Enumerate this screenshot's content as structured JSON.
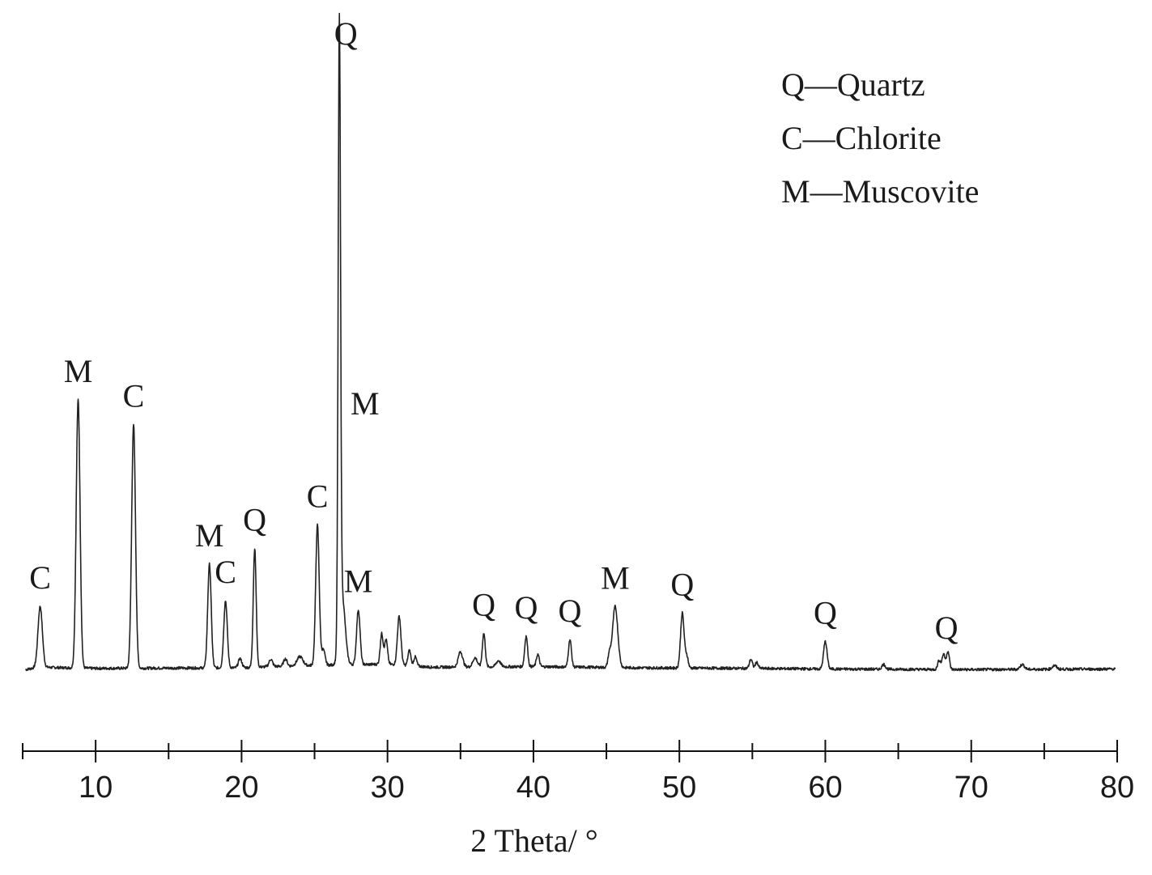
{
  "chart_data": {
    "type": "line",
    "xlabel": "2 Theta/ °",
    "ylabel": "",
    "title": "",
    "xlim": [
      5,
      80
    ],
    "ylim": [
      0,
      100
    ],
    "grid": false,
    "legend_position": "top-right",
    "x_ticks": [
      10,
      20,
      30,
      40,
      50,
      60,
      70,
      80
    ],
    "legend": [
      {
        "symbol": "Q",
        "name": "Quartz",
        "text": "Q—Quartz"
      },
      {
        "symbol": "C",
        "name": "Chlorite",
        "text": "C—Chlorite"
      },
      {
        "symbol": "M",
        "name": "Muscovite",
        "text": "M—Muscovite"
      }
    ],
    "annotations": [
      {
        "label": "C",
        "x": 6.2
      },
      {
        "label": "M",
        "x": 8.8
      },
      {
        "label": "C",
        "x": 12.6
      },
      {
        "label": "M",
        "x": 17.8
      },
      {
        "label": "C",
        "x": 18.9
      },
      {
        "label": "Q",
        "x": 20.9
      },
      {
        "label": "C",
        "x": 25.2
      },
      {
        "label": "Q",
        "x": 26.7
      },
      {
        "label": "M",
        "x": 26.9
      },
      {
        "label": "M",
        "x": 28.0
      },
      {
        "label": "Q",
        "x": 36.6
      },
      {
        "label": "Q",
        "x": 39.5
      },
      {
        "label": "Q",
        "x": 42.5
      },
      {
        "label": "M",
        "x": 45.6
      },
      {
        "label": "Q",
        "x": 50.2
      },
      {
        "label": "Q",
        "x": 60.0
      },
      {
        "label": "Q",
        "x": 68.3
      }
    ],
    "series": [
      {
        "background": [
          [
            5,
            0
          ],
          [
            6,
            0.5
          ],
          [
            10,
            0.3
          ],
          [
            20,
            0.4
          ],
          [
            22,
            0.6
          ],
          [
            25,
            0.8
          ],
          [
            30,
            1.0
          ],
          [
            33,
            0.5
          ],
          [
            40,
            0.6
          ],
          [
            47,
            0.4
          ],
          [
            55,
            0.3
          ],
          [
            60,
            0.2
          ],
          [
            70,
            0.1
          ],
          [
            80,
            0.2
          ]
        ],
        "peaks": [
          {
            "x": 6.2,
            "y": 10,
            "w": 0.15
          },
          {
            "x": 8.8,
            "y": 44,
            "w": 0.13
          },
          {
            "x": 12.6,
            "y": 40,
            "w": 0.13
          },
          {
            "x": 17.8,
            "y": 17,
            "w": 0.12
          },
          {
            "x": 18.9,
            "y": 11,
            "w": 0.12
          },
          {
            "x": 19.9,
            "y": 1.5,
            "w": 0.12
          },
          {
            "x": 20.9,
            "y": 19.5,
            "w": 0.1
          },
          {
            "x": 22.0,
            "y": 1.2,
            "w": 0.12
          },
          {
            "x": 23.0,
            "y": 1.2,
            "w": 0.12
          },
          {
            "x": 24.0,
            "y": 1.5,
            "w": 0.2
          },
          {
            "x": 25.2,
            "y": 23,
            "w": 0.12
          },
          {
            "x": 25.6,
            "y": 2.5,
            "w": 0.12
          },
          {
            "x": 26.7,
            "y": 100,
            "w": 0.08
          },
          {
            "x": 26.9,
            "y": 11,
            "w": 0.2
          },
          {
            "x": 28.0,
            "y": 9,
            "w": 0.12
          },
          {
            "x": 29.6,
            "y": 5,
            "w": 0.1
          },
          {
            "x": 29.9,
            "y": 4,
            "w": 0.1
          },
          {
            "x": 30.8,
            "y": 8,
            "w": 0.12
          },
          {
            "x": 31.5,
            "y": 2.5,
            "w": 0.1
          },
          {
            "x": 31.9,
            "y": 1.5,
            "w": 0.1
          },
          {
            "x": 35.0,
            "y": 2.5,
            "w": 0.15
          },
          {
            "x": 36.0,
            "y": 1.5,
            "w": 0.15
          },
          {
            "x": 36.6,
            "y": 5.5,
            "w": 0.1
          },
          {
            "x": 37.6,
            "y": 1.0,
            "w": 0.15
          },
          {
            "x": 39.5,
            "y": 5,
            "w": 0.1
          },
          {
            "x": 40.3,
            "y": 2,
            "w": 0.1
          },
          {
            "x": 42.5,
            "y": 4.5,
            "w": 0.1
          },
          {
            "x": 45.6,
            "y": 10,
            "w": 0.18
          },
          {
            "x": 45.2,
            "y": 2,
            "w": 0.1
          },
          {
            "x": 50.2,
            "y": 9,
            "w": 0.12
          },
          {
            "x": 50.5,
            "y": 2,
            "w": 0.1
          },
          {
            "x": 54.9,
            "y": 1.5,
            "w": 0.1
          },
          {
            "x": 55.3,
            "y": 1.0,
            "w": 0.1
          },
          {
            "x": 60.0,
            "y": 4.5,
            "w": 0.12
          },
          {
            "x": 64.0,
            "y": 0.8,
            "w": 0.12
          },
          {
            "x": 67.8,
            "y": 1.5,
            "w": 0.1
          },
          {
            "x": 68.1,
            "y": 2.5,
            "w": 0.1
          },
          {
            "x": 68.4,
            "y": 3,
            "w": 0.1
          },
          {
            "x": 73.5,
            "y": 0.8,
            "w": 0.15
          },
          {
            "x": 75.7,
            "y": 0.6,
            "w": 0.15
          }
        ]
      }
    ]
  }
}
